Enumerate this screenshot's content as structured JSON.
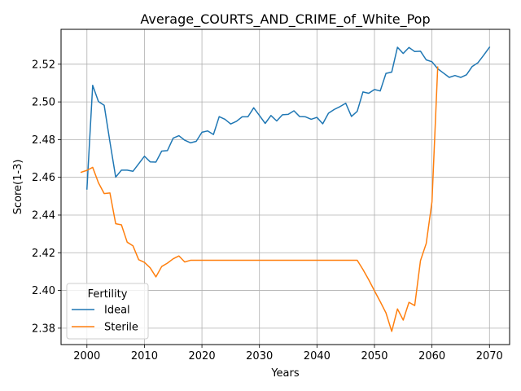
{
  "chart_data": {
    "type": "line",
    "title": "Average_COURTS_AND_CRIME_of_White_Pop",
    "xlabel": "Years",
    "ylabel": "Score(1-3)",
    "xlim": [
      1995.5,
      2073.5
    ],
    "ylim": [
      2.3713,
      2.5385
    ],
    "xticks": [
      2000,
      2010,
      2020,
      2030,
      2040,
      2050,
      2060,
      2070
    ],
    "yticks": [
      2.38,
      2.4,
      2.42,
      2.44,
      2.46,
      2.48,
      2.5,
      2.52
    ],
    "ytick_labels": [
      "2.38",
      "2.40",
      "2.42",
      "2.44",
      "2.46",
      "2.48",
      "2.50",
      "2.52"
    ],
    "grid": true,
    "legend": {
      "title": "Fertility",
      "placement": "lower-left"
    },
    "series": [
      {
        "name": "Ideal",
        "color": "#1f77b4",
        "x": [
          2000,
          2001,
          2002,
          2003,
          2004,
          2005,
          2006,
          2007,
          2008,
          2009,
          2010,
          2011,
          2012,
          2013,
          2014,
          2015,
          2016,
          2017,
          2018,
          2019,
          2020,
          2021,
          2022,
          2023,
          2024,
          2025,
          2026,
          2027,
          2028,
          2029,
          2030,
          2031,
          2032,
          2033,
          2034,
          2035,
          2036,
          2037,
          2038,
          2039,
          2040,
          2041,
          2042,
          2043,
          2044,
          2045,
          2046,
          2047,
          2048,
          2049,
          2050,
          2051,
          2052,
          2053,
          2054,
          2055,
          2056,
          2057,
          2058,
          2059,
          2060,
          2061,
          2062,
          2063,
          2064,
          2065,
          2066,
          2067,
          2068,
          2069,
          2070
        ],
        "y": [
          2.4538,
          2.5088,
          2.5002,
          2.4982,
          2.4788,
          2.4601,
          2.4638,
          2.4638,
          2.4632,
          2.4672,
          2.4712,
          2.4682,
          2.4681,
          2.4739,
          2.4742,
          2.4808,
          2.4821,
          2.4797,
          2.4783,
          2.4791,
          2.4839,
          2.4846,
          2.4827,
          2.4922,
          2.4908,
          2.4883,
          2.4897,
          2.4921,
          2.4921,
          2.4969,
          2.4928,
          2.4886,
          2.4928,
          2.4899,
          2.4932,
          2.4934,
          2.4953,
          2.4922,
          2.4921,
          2.4908,
          2.4918,
          2.4884,
          2.494,
          2.496,
          2.4975,
          2.4993,
          2.4923,
          2.495,
          2.5053,
          2.5046,
          2.5066,
          2.5058,
          2.5151,
          2.5158,
          2.529,
          2.5257,
          2.5289,
          2.5267,
          2.5269,
          2.5223,
          2.5213,
          2.5176,
          2.5153,
          2.513,
          2.514,
          2.513,
          2.5144,
          2.5188,
          2.5208,
          2.5248,
          2.529
        ]
      },
      {
        "name": "Sterile",
        "color": "#ff7f0e",
        "x": [
          1999,
          2000,
          2001,
          2002,
          2003,
          2004,
          2005,
          2006,
          2007,
          2008,
          2009,
          2010,
          2011,
          2012,
          2013,
          2014,
          2015,
          2016,
          2017,
          2018,
          2019,
          2020,
          2021,
          2022,
          2023,
          2024,
          2025,
          2026,
          2027,
          2028,
          2029,
          2030,
          2031,
          2032,
          2033,
          2034,
          2035,
          2036,
          2037,
          2038,
          2039,
          2040,
          2041,
          2042,
          2043,
          2044,
          2045,
          2046,
          2047,
          2048,
          2049,
          2050,
          2051,
          2052,
          2053,
          2054,
          2055,
          2056,
          2057,
          2058,
          2059,
          2060,
          2061
        ],
        "y": [
          2.4627,
          2.4637,
          2.4653,
          2.4571,
          2.4514,
          2.4517,
          2.4354,
          2.4348,
          2.4256,
          2.4237,
          2.4163,
          2.4149,
          2.412,
          2.4072,
          2.4127,
          2.4145,
          2.4168,
          2.4183,
          2.4151,
          2.416,
          2.416,
          2.416,
          2.416,
          2.416,
          2.416,
          2.416,
          2.416,
          2.416,
          2.416,
          2.416,
          2.416,
          2.416,
          2.416,
          2.416,
          2.416,
          2.416,
          2.416,
          2.416,
          2.416,
          2.416,
          2.416,
          2.416,
          2.416,
          2.416,
          2.416,
          2.416,
          2.416,
          2.416,
          2.416,
          2.4111,
          2.4057,
          2.3998,
          2.3941,
          2.3881,
          2.3783,
          2.3902,
          2.3843,
          2.3937,
          2.392,
          2.4158,
          2.4249,
          2.447,
          2.5185
        ]
      }
    ]
  }
}
